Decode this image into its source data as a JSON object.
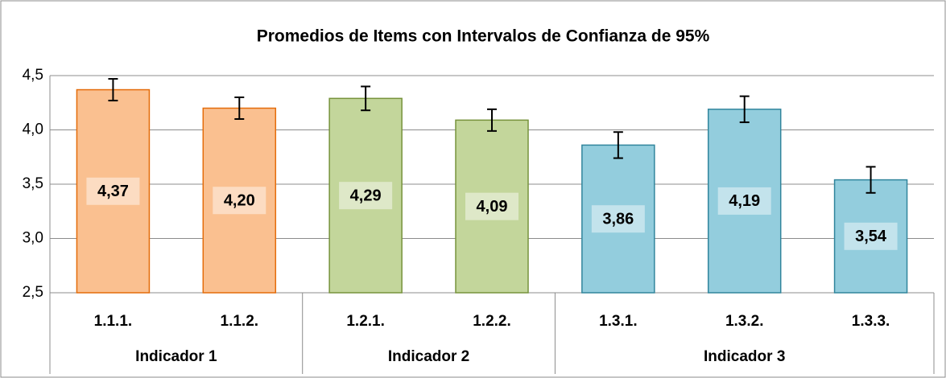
{
  "chart_data": {
    "type": "bar",
    "title": "Promedios de Items con Intervalos de Confianza de 95%",
    "ylim": [
      2.5,
      4.5
    ],
    "yticks": [
      {
        "value": 2.5,
        "label": "2,5"
      },
      {
        "value": 3,
        "label": "3,0"
      },
      {
        "value": 3.5,
        "label": "3,5"
      },
      {
        "value": 4,
        "label": "4,0"
      },
      {
        "value": 4.5,
        "label": "4,5"
      }
    ],
    "grid": true,
    "groups": [
      {
        "name": "Indicador 1",
        "categories": [
          "1.1.1.",
          "1.1.2."
        ],
        "values": [
          4.37,
          4.2
        ],
        "value_labels": [
          "4,37",
          "4,20"
        ],
        "errors": [
          0.1,
          0.1
        ],
        "color": "#fac090",
        "edge_color": "#e46c0a"
      },
      {
        "name": "Indicador 2",
        "categories": [
          "1.2.1.",
          "1.2.2."
        ],
        "values": [
          4.29,
          4.09
        ],
        "value_labels": [
          "4,29",
          "4,09"
        ],
        "errors": [
          0.11,
          0.1
        ],
        "color": "#c3d69b",
        "edge_color": "#77933c"
      },
      {
        "name": "Indicador 3",
        "categories": [
          "1.3.1.",
          "1.3.2.",
          "1.3.3."
        ],
        "values": [
          3.86,
          4.19,
          3.54
        ],
        "value_labels": [
          "3,86",
          "4,19",
          "3,54"
        ],
        "errors": [
          0.12,
          0.12,
          0.12
        ],
        "color": "#93cddd",
        "edge_color": "#31859c"
      }
    ]
  }
}
